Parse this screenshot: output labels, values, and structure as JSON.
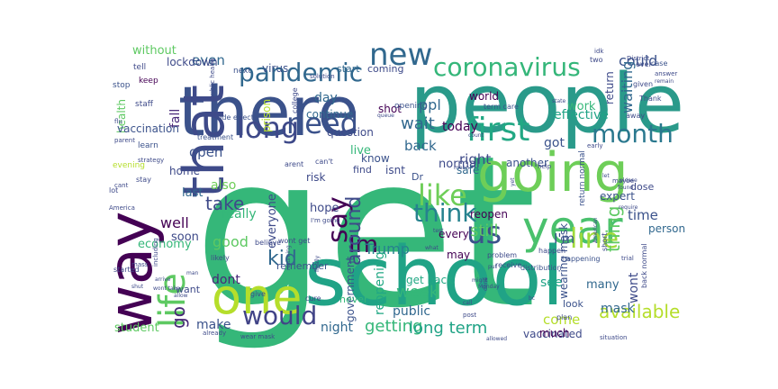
{
  "words": [
    {
      "text": "get",
      "color": "#35b779"
    },
    {
      "text": "school",
      "color": "#20a386"
    },
    {
      "text": "people",
      "color": "#2a9a8a"
    },
    {
      "text": "there",
      "color": "#3b528b"
    },
    {
      "text": "going",
      "color": "#6ece58"
    },
    {
      "text": "way",
      "color": "#440154"
    },
    {
      "text": "that",
      "color": "#3e4a89"
    },
    {
      "text": "one",
      "color": "#b5de2b"
    },
    {
      "text": "year",
      "color": "#4ac16d"
    },
    {
      "text": "life",
      "color": "#5ec962"
    },
    {
      "text": "month",
      "color": "#2a788e"
    },
    {
      "text": "first",
      "color": "#22a884"
    },
    {
      "text": "new",
      "color": "#31688e"
    },
    {
      "text": "need",
      "color": "#3b528b"
    },
    {
      "text": "long",
      "color": "#3e4989"
    },
    {
      "text": "pandemic",
      "color": "#31688e"
    },
    {
      "text": "coronavirus",
      "color": "#34b679"
    },
    {
      "text": "like",
      "color": "#6ece58"
    },
    {
      "text": "line",
      "color": "#9fda3a"
    },
    {
      "text": "us",
      "color": "#3b528b"
    },
    {
      "text": "say",
      "color": "#440154"
    },
    {
      "text": "think",
      "color": "#26828e"
    },
    {
      "text": "Im",
      "color": "#440154"
    },
    {
      "text": "kid",
      "color": "#31688e"
    },
    {
      "text": "would",
      "color": "#414487"
    },
    {
      "text": "go",
      "color": "#482878"
    },
    {
      "text": "around",
      "color": "#3e4a89"
    },
    {
      "text": "ppl",
      "color": "#31688e"
    },
    {
      "text": "available",
      "color": "#b5de2b"
    },
    {
      "text": "thing",
      "color": "#5ec962"
    },
    {
      "text": "Trump",
      "color": "#26828e"
    },
    {
      "text": "week",
      "color": "#35b779"
    },
    {
      "text": "take",
      "color": "#3e4a89"
    },
    {
      "text": "could",
      "color": "#3b528b"
    },
    {
      "text": "even",
      "color": "#31688e"
    },
    {
      "text": "getting",
      "color": "#35b779"
    },
    {
      "text": "long term",
      "color": "#20a386"
    },
    {
      "text": "right",
      "color": "#3e4a89"
    },
    {
      "text": "still",
      "color": "#5ec962"
    },
    {
      "text": "back",
      "color": "#31688e"
    },
    {
      "text": "wait",
      "color": "#31688e"
    },
    {
      "text": "time",
      "color": "#3b528b"
    },
    {
      "text": "open",
      "color": "#3b528b"
    },
    {
      "text": "good",
      "color": "#5ec962"
    },
    {
      "text": "well",
      "color": "#440154"
    },
    {
      "text": "really",
      "color": "#35b779"
    },
    {
      "text": "come",
      "color": "#b5de2b"
    },
    {
      "text": "see",
      "color": "#20a386"
    },
    {
      "text": "mask",
      "color": "#31688e"
    },
    {
      "text": "hope",
      "color": "#3e4a89"
    },
    {
      "text": "economy",
      "color": "#35b779"
    },
    {
      "text": "night",
      "color": "#31688e"
    },
    {
      "text": "make",
      "color": "#3b528b"
    },
    {
      "text": "student",
      "color": "#5ec962"
    },
    {
      "text": "reopening",
      "color": "#22a884"
    },
    {
      "text": "public",
      "color": "#31688e"
    },
    {
      "text": "day",
      "color": "#31688e"
    },
    {
      "text": "everyone",
      "color": "#3e4a89"
    },
    {
      "text": "also",
      "color": "#6ece58"
    },
    {
      "text": "government",
      "color": "#3b528b"
    },
    {
      "text": "I'm",
      "color": "#3b528b"
    },
    {
      "text": "wont",
      "color": "#3e4a89"
    },
    {
      "text": "fall",
      "color": "#482878"
    },
    {
      "text": "waiting",
      "color": "#31688e"
    },
    {
      "text": "dont",
      "color": "#482878"
    },
    {
      "text": "soon",
      "color": "#3e4a89"
    },
    {
      "text": "last",
      "color": "#31688e"
    },
    {
      "text": "effective",
      "color": "#20a386"
    },
    {
      "text": "today",
      "color": "#440154"
    },
    {
      "text": "every",
      "color": "#440154"
    },
    {
      "text": "may",
      "color": "#440154"
    },
    {
      "text": "many",
      "color": "#31688e"
    },
    {
      "text": "vaccinated",
      "color": "#3e4a89"
    },
    {
      "text": "much",
      "color": "#440154"
    },
    {
      "text": "get back",
      "color": "#22a884"
    },
    {
      "text": "person",
      "color": "#31688e"
    },
    {
      "text": "normal",
      "color": "#3e4a89"
    },
    {
      "text": "reopen",
      "color": "#440154"
    },
    {
      "text": "work",
      "color": "#35b779"
    },
    {
      "text": "got",
      "color": "#3b528b"
    },
    {
      "text": "safe",
      "color": "#31688e"
    },
    {
      "text": "isnt",
      "color": "#3e4a89"
    },
    {
      "text": "live",
      "color": "#35b779"
    },
    {
      "text": "question",
      "color": "#3e4a89"
    },
    {
      "text": "continue",
      "color": "#31688e"
    },
    {
      "text": "shot",
      "color": "#440154"
    },
    {
      "text": "without",
      "color": "#5ec962"
    },
    {
      "text": "lockdown",
      "color": "#3e4a89"
    },
    {
      "text": "virus",
      "color": "#3b528b"
    },
    {
      "text": "health",
      "color": "#5ec962"
    },
    {
      "text": "vaccination",
      "color": "#3b528b"
    },
    {
      "text": "home",
      "color": "#3e4a89"
    },
    {
      "text": "coming",
      "color": "#3e4a89"
    },
    {
      "text": "start",
      "color": "#31688e"
    },
    {
      "text": "world",
      "color": "#440154"
    },
    {
      "text": "return",
      "color": "#3e4a89"
    },
    {
      "text": "wearing mask",
      "color": "#3b528b"
    },
    {
      "text": "remember",
      "color": "#3b528b"
    },
    {
      "text": "never",
      "color": "#35b779"
    },
    {
      "text": "want",
      "color": "#3e4a89"
    },
    {
      "text": "risk",
      "color": "#3e4a89"
    },
    {
      "text": "find",
      "color": "#3e4a89"
    },
    {
      "text": "know",
      "color": "#3b528b"
    },
    {
      "text": "prison",
      "color": "#b5de2b"
    },
    {
      "text": "Dr",
      "color": "#3b528b"
    },
    {
      "text": "another",
      "color": "#3b528b"
    },
    {
      "text": "expert",
      "color": "#3b528b"
    },
    {
      "text": "dose",
      "color": "#3e4a89"
    },
    {
      "text": "look",
      "color": "#3b528b"
    },
    {
      "text": "next",
      "color": "#3b528b"
    },
    {
      "text": "opening",
      "color": "#3b528b"
    },
    {
      "text": "staff",
      "color": "#3e4a89"
    },
    {
      "text": "learn",
      "color": "#3b528b"
    },
    {
      "text": "keep",
      "color": "#440154"
    },
    {
      "text": "stop",
      "color": "#3b528b"
    },
    {
      "text": "tell",
      "color": "#3e4a89"
    },
    {
      "text": "evening",
      "color": "#b5de2b"
    },
    {
      "text": "lot",
      "color": "#3e4a89"
    },
    {
      "text": "stay",
      "color": "#3e4a89"
    },
    {
      "text": "can't",
      "color": "#3e4a89"
    },
    {
      "text": "arent",
      "color": "#3e4a89"
    },
    {
      "text": "treatment",
      "color": "#3b528b"
    },
    {
      "text": "side effect",
      "color": "#3b528b"
    },
    {
      "text": "college",
      "color": "#3e4a89"
    },
    {
      "text": "term care",
      "color": "#3b528b"
    },
    {
      "text": "two",
      "color": "#3e4a89"
    },
    {
      "text": "away",
      "color": "#3e4a89"
    },
    {
      "text": "case",
      "color": "#3b528b"
    },
    {
      "text": "given",
      "color": "#3e4a89"
    },
    {
      "text": "Thank",
      "color": "#3e4a89"
    },
    {
      "text": "ever",
      "color": "#3e4a89"
    },
    {
      "text": "answer",
      "color": "#3e4a89"
    },
    {
      "text": "idk",
      "color": "#3e4a89"
    },
    {
      "text": "maybe",
      "color": "#3e4a89"
    },
    {
      "text": "help",
      "color": "#3e4a89"
    },
    {
      "text": "early",
      "color": "#3e4a89"
    },
    {
      "text": "return normal",
      "color": "#3b528b"
    },
    {
      "text": "short",
      "color": "#3e4a89"
    },
    {
      "text": "trial",
      "color": "#3e4a89"
    },
    {
      "text": "happen",
      "color": "#3e4a89"
    },
    {
      "text": "problem",
      "color": "#3e4a89"
    },
    {
      "text": "receive",
      "color": "#3e4a89"
    },
    {
      "text": "distribution",
      "color": "#3b528b"
    },
    {
      "text": "happening",
      "color": "#3b528b"
    },
    {
      "text": "back normal",
      "color": "#3e4a89"
    },
    {
      "text": "plan",
      "color": "#3e4a89"
    },
    {
      "text": "believe",
      "color": "#3e4a89"
    },
    {
      "text": "wont get",
      "color": "#3e4a89"
    },
    {
      "text": "likely",
      "color": "#3e4a89"
    },
    {
      "text": "cure",
      "color": "#3e4a89"
    },
    {
      "text": "give",
      "color": "#3e4a89"
    },
    {
      "text": "already",
      "color": "#3e4a89"
    },
    {
      "text": "wear mask",
      "color": "#3e4a89"
    },
    {
      "text": "situation",
      "color": "#3e4a89"
    },
    {
      "text": "post",
      "color": "#3e4a89"
    },
    {
      "text": "mass",
      "color": "#3e4a89"
    },
    {
      "text": "started",
      "color": "#3e4a89"
    },
    {
      "text": "America",
      "color": "#3e4a89"
    },
    {
      "text": "including",
      "color": "#3e4a89"
    },
    {
      "text": "I'm going",
      "color": "#3e4a89"
    },
    {
      "text": "parent",
      "color": "#3e4a89"
    },
    {
      "text": "cant",
      "color": "#3e4a89"
    },
    {
      "text": "flu",
      "color": "#3e4a89"
    },
    {
      "text": "solution",
      "color": "#3e4a89"
    },
    {
      "text": "District",
      "color": "#3e4a89"
    },
    {
      "text": "public health",
      "color": "#3e4a89"
    },
    {
      "text": "strategy",
      "color": "#3e4a89"
    },
    {
      "text": "American",
      "color": "#3e4a89"
    },
    {
      "text": "please",
      "color": "#3e4a89"
    },
    {
      "text": "require",
      "color": "#3e4a89"
    },
    {
      "text": "remain",
      "color": "#3e4a89"
    },
    {
      "text": "bc",
      "color": "#3e4a89"
    },
    {
      "text": "test",
      "color": "#3e4a89"
    },
    {
      "text": "call",
      "color": "#3e4a89"
    },
    {
      "text": "might",
      "color": "#3e4a89"
    },
    {
      "text": "Monday",
      "color": "#3e4a89"
    },
    {
      "text": "done",
      "color": "#3e4a89"
    },
    {
      "text": "mean",
      "color": "#3e4a89"
    },
    {
      "text": "queue",
      "color": "#3e4a89"
    },
    {
      "text": "count",
      "color": "#3e4a89"
    },
    {
      "text": "state",
      "color": "#3e4a89"
    },
    {
      "text": "yet",
      "color": "#3e4a89"
    },
    {
      "text": "let",
      "color": "#3e4a89"
    },
    {
      "text": "found",
      "color": "#3e4a89"
    },
    {
      "text": "finally",
      "color": "#3e4a89"
    },
    {
      "text": "returning",
      "color": "#3e4a89"
    },
    {
      "text": "what",
      "color": "#3e4a89"
    },
    {
      "text": "allowed",
      "color": "#3e4a89"
    },
    {
      "text": "arrive",
      "color": "#3e4a89"
    },
    {
      "text": "shut",
      "color": "#3e4a89"
    },
    {
      "text": "man",
      "color": "#3e4a89"
    },
    {
      "text": "wont take",
      "color": "#3e4a89"
    },
    {
      "text": "allow",
      "color": "#3e4a89"
    },
    {
      "text": "put",
      "color": "#3e4a89"
    }
  ]
}
